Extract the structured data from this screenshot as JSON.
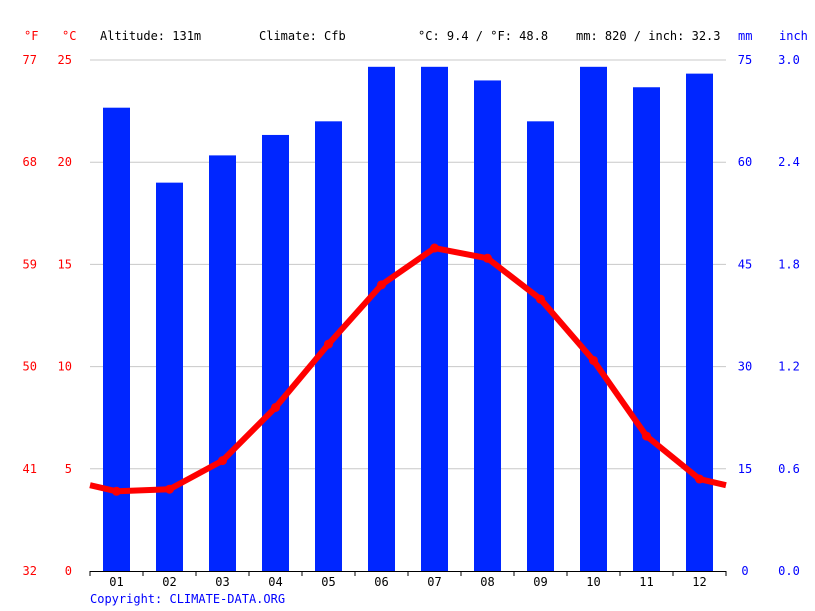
{
  "header": {
    "unit_f": "°F",
    "unit_c": "°C",
    "altitude": "Altitude: 131m",
    "climate": "Climate: Cfb",
    "temp_avg": "°C: 9.4 / °F: 48.8",
    "precip_total": "mm: 820 / inch: 32.3",
    "unit_mm": "mm",
    "unit_inch": "inch"
  },
  "footer": {
    "copyright": "Copyright: CLIMATE-DATA.ORG"
  },
  "colors": {
    "bars": "#0026ff",
    "line": "#ff0000",
    "grid": "#c8c8c8",
    "axis": "#000000",
    "left_labels": "#ff0000",
    "right_labels": "#0000ff"
  },
  "chart_data": {
    "type": "bar+line",
    "categories": [
      "01",
      "02",
      "03",
      "04",
      "05",
      "06",
      "07",
      "08",
      "09",
      "10",
      "11",
      "12"
    ],
    "precip_mm": [
      68,
      57,
      61,
      64,
      66,
      74,
      74,
      72,
      66,
      74,
      71,
      73
    ],
    "temp_c": [
      3.9,
      4.0,
      5.4,
      8.0,
      11.1,
      14.0,
      15.8,
      15.3,
      13.3,
      10.3,
      6.6,
      4.5
    ],
    "temp_c_left_edge": 4.2,
    "temp_c_right_edge": 4.2,
    "left_axis_c": {
      "ylim": [
        0,
        25
      ],
      "ticks": [
        "0",
        "5",
        "10",
        "15",
        "20",
        "25"
      ]
    },
    "left_axis_f": {
      "ticks": [
        "32",
        "41",
        "50",
        "59",
        "68",
        "77"
      ]
    },
    "right_axis_mm": {
      "ylim": [
        0,
        75
      ],
      "ticks": [
        "0",
        "15",
        "30",
        "45",
        "60",
        "75"
      ]
    },
    "right_axis_inch": {
      "ticks": [
        "0.0",
        "0.6",
        "1.2",
        "1.8",
        "2.4",
        "3.0"
      ]
    },
    "grid": true
  }
}
